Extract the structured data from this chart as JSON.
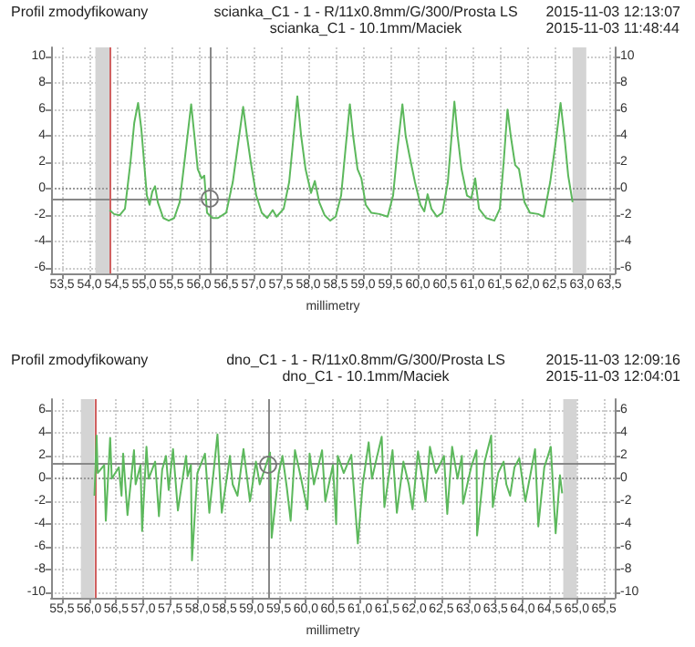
{
  "chart_data": [
    {
      "type": "line",
      "title": "Profil zmodyfikowany",
      "subtitle": "scianka_C1 - 1 - R/11x0.8mm/G/300/Prosta LS\nscianka_C1 - 10.1mm/Maciek",
      "xlabel": "millimetry",
      "annotations": [
        "2015-11-03 12:13:07\n2015-11-03 11:48:44"
      ],
      "x": [
        54.37,
        54.45,
        54.55,
        54.65,
        54.75,
        54.82,
        54.89,
        54.95,
        55.0,
        55.05,
        55.1,
        55.15,
        55.2,
        55.25,
        55.35,
        55.45,
        55.55,
        55.65,
        55.75,
        55.86,
        55.92,
        55.98,
        56.05,
        56.1,
        56.15,
        56.25,
        56.35,
        56.5,
        56.62,
        56.72,
        56.81,
        56.88,
        56.95,
        57.05,
        57.15,
        57.25,
        57.35,
        57.42,
        57.55,
        57.65,
        57.72,
        57.8,
        57.87,
        57.95,
        58.05,
        58.12,
        58.2,
        58.3,
        58.4,
        58.5,
        58.6,
        58.68,
        58.76,
        58.82,
        58.9,
        58.97,
        59.05,
        59.15,
        59.3,
        59.45,
        59.55,
        59.63,
        59.72,
        59.78,
        59.85,
        59.95,
        60.05,
        60.12,
        60.18,
        60.25,
        60.35,
        60.45,
        60.55,
        60.67,
        60.73,
        60.8,
        60.9,
        60.98,
        61.05,
        61.12,
        61.25,
        61.4,
        61.5,
        61.57,
        61.64,
        61.7,
        61.78,
        61.85,
        61.95,
        62.05,
        62.2,
        62.3,
        62.42,
        62.52,
        62.61,
        62.68,
        62.75,
        62.83
      ],
      "series": [
        {
          "color": "#5cb85c",
          "values": [
            -1.6,
            -1.9,
            -2.0,
            -1.5,
            2.0,
            5.0,
            6.5,
            4.5,
            2.0,
            -0.5,
            -1.2,
            -0.2,
            0.2,
            -1.0,
            -2.2,
            -2.4,
            -2.2,
            -1.0,
            2.5,
            6.4,
            4.0,
            1.5,
            0.8,
            1.0,
            -1.8,
            -2.2,
            -2.2,
            -1.8,
            0.5,
            3.5,
            6.2,
            4.0,
            2.0,
            -0.5,
            -1.8,
            -2.2,
            -1.6,
            -2.1,
            -1.5,
            0.5,
            3.5,
            7.0,
            4.0,
            1.5,
            -0.3,
            0.6,
            -1.0,
            -2.0,
            -2.4,
            -2.1,
            -0.5,
            3.0,
            6.4,
            4.0,
            1.5,
            0.8,
            -1.2,
            -1.8,
            -1.9,
            -2.1,
            -0.5,
            3.0,
            6.4,
            4.0,
            2.5,
            0.5,
            -1.2,
            -1.7,
            -0.4,
            -1.5,
            -2.1,
            -1.8,
            0.5,
            6.6,
            4.0,
            1.5,
            -0.5,
            -0.7,
            0.8,
            -1.5,
            -2.2,
            -2.4,
            -1.5,
            2.0,
            6.0,
            4.0,
            1.8,
            1.5,
            -1.0,
            -1.8,
            -1.9,
            -2.1,
            0.5,
            3.5,
            6.5,
            4.0,
            1.0,
            -1.0
          ]
        }
      ],
      "xlim": [
        53.3,
        63.6
      ],
      "ylim": [
        -6.4,
        10.7
      ],
      "y2lim": [
        -6.4,
        10.7
      ],
      "xticks": [
        {
          "value": 53.5,
          "label": "53,5"
        },
        {
          "value": 54,
          "label": "54,0"
        },
        {
          "value": 54.5,
          "label": "54,5"
        },
        {
          "value": 55,
          "label": "55,0"
        },
        {
          "value": 55.5,
          "label": "55,5"
        },
        {
          "value": 56,
          "label": "56,0"
        },
        {
          "value": 56.5,
          "label": "56,5"
        },
        {
          "value": 57,
          "label": "57,0"
        },
        {
          "value": 57.5,
          "label": "57,5"
        },
        {
          "value": 58,
          "label": "58,0"
        },
        {
          "value": 58.5,
          "label": "58,5"
        },
        {
          "value": 59,
          "label": "59,0"
        },
        {
          "value": 59.5,
          "label": "59,5"
        },
        {
          "value": 60,
          "label": "60,0"
        },
        {
          "value": 60.5,
          "label": "60,5"
        },
        {
          "value": 61,
          "label": "61,0"
        },
        {
          "value": 61.5,
          "label": "61,5"
        },
        {
          "value": 62,
          "label": "62,0"
        },
        {
          "value": 62.5,
          "label": "62,5"
        },
        {
          "value": 63,
          "label": "63,0"
        },
        {
          "value": 63.5,
          "label": "63,5"
        }
      ],
      "yticks": [
        -6,
        -4,
        -2,
        0,
        2,
        4,
        6,
        8,
        10
      ],
      "y2ticks": [
        -6,
        -4,
        -2,
        0,
        2,
        4,
        6,
        8,
        10
      ],
      "ref_lines": [
        {
          "axis": "y",
          "value": 0,
          "color": "#999999",
          "line_style": "dotted"
        },
        {
          "axis": "y",
          "value": -0.77,
          "color": "#888888",
          "line_style": "solid"
        },
        {
          "axis": "x",
          "value": 56.2,
          "color": "#888888",
          "line_style": "solid"
        },
        {
          "axis": "x",
          "value": 54.37,
          "color": "#d06060",
          "line_style": "solid"
        }
      ],
      "bands": [
        {
          "axis": "x",
          "from": 54.11,
          "to": 54.37,
          "color": "#d4d4d4"
        },
        {
          "axis": "x",
          "from": 62.83,
          "to": 63.08,
          "color": "#d4d4d4"
        }
      ],
      "grid": true
    },
    {
      "type": "line",
      "title": "Profil zmodyfikowany",
      "subtitle": "dno_C1 - 1 - R/11x0.8mm/G/300/Prosta LS\ndno_C1 - 10.1mm/Maciek",
      "xlabel": "millimetry",
      "annotations": [
        "2015-11-03 12:09:16\n2015-11-03 12:04:01"
      ],
      "x": [
        56.1,
        56.14,
        56.16,
        56.28,
        56.31,
        56.39,
        56.42,
        56.55,
        56.6,
        56.63,
        56.71,
        56.83,
        56.86,
        56.95,
        56.98,
        57.06,
        57.1,
        57.22,
        57.29,
        57.35,
        57.42,
        57.47,
        57.55,
        57.64,
        57.79,
        57.82,
        57.88,
        57.9,
        58.0,
        58.14,
        58.22,
        58.37,
        58.45,
        58.6,
        58.65,
        58.74,
        58.85,
        58.97,
        59.08,
        59.15,
        59.34,
        59.37,
        59.5,
        59.57,
        59.65,
        59.72,
        59.8,
        59.9,
        60.03,
        60.07,
        60.15,
        60.3,
        60.36,
        60.5,
        60.56,
        60.59,
        60.7,
        60.84,
        60.96,
        61.05,
        61.16,
        61.22,
        61.4,
        61.45,
        61.6,
        61.68,
        61.8,
        61.9,
        61.97,
        62.07,
        62.15,
        62.21,
        62.29,
        62.4,
        62.55,
        62.61,
        62.7,
        62.8,
        62.88,
        62.9,
        63.05,
        63.15,
        63.16,
        63.3,
        63.42,
        63.45,
        63.55,
        63.65,
        63.7,
        63.77,
        63.85,
        63.94,
        64.05,
        64.15,
        64.23,
        64.29,
        64.4,
        64.52,
        64.61,
        64.69,
        64.73
      ],
      "series": [
        {
          "color": "#5cb85c",
          "values": [
            -1.5,
            3.8,
            0.5,
            1.2,
            -3.7,
            3.6,
            0.0,
            1.0,
            -1.5,
            2.2,
            -3.2,
            2.5,
            -0.5,
            1.2,
            -4.6,
            2.8,
            0.0,
            1.5,
            -3.3,
            0.8,
            2.0,
            -1.0,
            2.6,
            -2.8,
            2.0,
            0.2,
            1.2,
            -7.2,
            0.5,
            2.2,
            -3.0,
            3.9,
            -3.0,
            2.0,
            -0.5,
            -1.5,
            2.6,
            -2.0,
            1.5,
            -0.5,
            2.3,
            -5.2,
            0.5,
            2.0,
            -0.8,
            -3.7,
            2.5,
            0.3,
            -2.7,
            2.2,
            -0.5,
            2.5,
            -2.0,
            1.2,
            -4.0,
            2.0,
            0.5,
            2.1,
            -5.7,
            -0.5,
            3.2,
            0.0,
            3.7,
            -2.5,
            2.5,
            -3.0,
            1.5,
            -0.5,
            -2.7,
            2.4,
            0.0,
            -2.0,
            2.8,
            0.5,
            2.0,
            -3.1,
            2.8,
            0.0,
            2.0,
            -2.2,
            1.0,
            2.5,
            -5.0,
            1.5,
            3.8,
            -2.5,
            0.5,
            1.5,
            -0.5,
            -1.5,
            1.0,
            1.8,
            -2.0,
            0.5,
            2.6,
            -4.2,
            1.0,
            2.8,
            -4.8,
            0.3,
            -1.3
          ]
        }
      ],
      "xlim": [
        55.3,
        65.7
      ],
      "ylim": [
        -10.5,
        7
      ],
      "y2lim": [
        -10.5,
        7
      ],
      "xticks": [
        {
          "value": 55.5,
          "label": "55,5"
        },
        {
          "value": 56,
          "label": "56,0"
        },
        {
          "value": 56.5,
          "label": "56,5"
        },
        {
          "value": 57,
          "label": "57,0"
        },
        {
          "value": 57.5,
          "label": "57,5"
        },
        {
          "value": 58,
          "label": "58,0"
        },
        {
          "value": 58.5,
          "label": "58,5"
        },
        {
          "value": 59,
          "label": "59,0"
        },
        {
          "value": 59.5,
          "label": "59,5"
        },
        {
          "value": 60,
          "label": "60,0"
        },
        {
          "value": 60.5,
          "label": "60,5"
        },
        {
          "value": 61,
          "label": "61,0"
        },
        {
          "value": 61.5,
          "label": "61,5"
        },
        {
          "value": 62,
          "label": "62,0"
        },
        {
          "value": 62.5,
          "label": "62,5"
        },
        {
          "value": 63,
          "label": "63,0"
        },
        {
          "value": 63.5,
          "label": "63,5"
        },
        {
          "value": 64,
          "label": "64,0"
        },
        {
          "value": 64.5,
          "label": "64,5"
        },
        {
          "value": 65,
          "label": "65,0"
        },
        {
          "value": 65.5,
          "label": "65,5"
        }
      ],
      "yticks": [
        -10,
        -8,
        -6,
        -4,
        -2,
        0,
        2,
        4,
        6
      ],
      "y2ticks": [
        -10,
        -8,
        -6,
        -4,
        -2,
        0,
        2,
        4,
        6
      ],
      "ref_lines": [
        {
          "axis": "y",
          "value": 0,
          "color": "#999999",
          "line_style": "dotted"
        },
        {
          "axis": "y",
          "value": 1.3,
          "color": "#888888",
          "line_style": "solid"
        },
        {
          "axis": "x",
          "value": 59.31,
          "color": "#888888",
          "line_style": "solid"
        },
        {
          "axis": "x",
          "value": 56.1,
          "color": "#d06060",
          "line_style": "solid"
        }
      ],
      "bands": [
        {
          "axis": "x",
          "from": 55.85,
          "to": 56.1,
          "color": "#d4d4d4"
        },
        {
          "axis": "x",
          "from": 64.75,
          "to": 65.0,
          "color": "#d4d4d4"
        }
      ],
      "grid": true
    }
  ]
}
